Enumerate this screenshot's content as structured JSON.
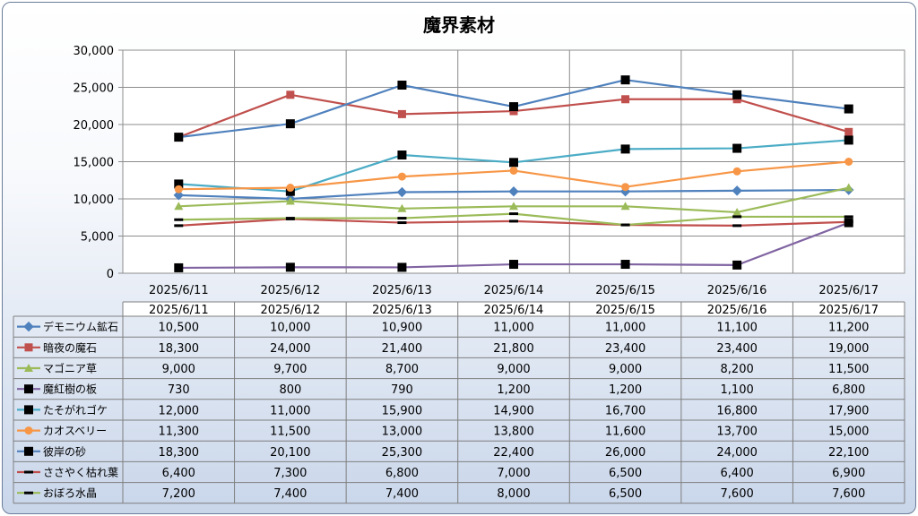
{
  "chart_data": {
    "type": "line",
    "title": "魔界素材",
    "categories": [
      "2025/6/11",
      "2025/6/12",
      "2025/6/13",
      "2025/6/14",
      "2025/6/15",
      "2025/6/16",
      "2025/6/17"
    ],
    "ylim": [
      0,
      30000
    ],
    "yticks": [
      "0",
      "5,000",
      "10,000",
      "15,000",
      "20,000",
      "25,000",
      "30,000"
    ],
    "grid": true,
    "legend": "data-table",
    "series": [
      {
        "name": "デモニウム鉱石",
        "color": "#4f81bd",
        "marker": "diamond",
        "values": [
          10500,
          10000,
          10900,
          11000,
          11000,
          11100,
          11200
        ],
        "labels": [
          "10,500",
          "10,000",
          "10,900",
          "11,000",
          "11,000",
          "11,100",
          "11,200"
        ]
      },
      {
        "name": "暗夜の魔石",
        "color": "#c0504d",
        "marker": "square",
        "values": [
          18300,
          24000,
          21400,
          21800,
          23400,
          23400,
          19000
        ],
        "labels": [
          "18,300",
          "24,000",
          "21,400",
          "21,800",
          "23,400",
          "23,400",
          "19,000"
        ]
      },
      {
        "name": "マゴニア草",
        "color": "#9bbb59",
        "marker": "triangle",
        "values": [
          9000,
          9700,
          8700,
          9000,
          9000,
          8200,
          11500
        ],
        "labels": [
          "9,000",
          "9,700",
          "8,700",
          "9,000",
          "9,000",
          "8,200",
          "11,500"
        ]
      },
      {
        "name": "魔紅樹の板",
        "color": "#8064a2",
        "marker": "blacksquare",
        "values": [
          730,
          800,
          790,
          1200,
          1200,
          1100,
          6800
        ],
        "labels": [
          "730",
          "800",
          "790",
          "1,200",
          "1,200",
          "1,100",
          "6,800"
        ]
      },
      {
        "name": "たそがれゴケ",
        "color": "#4bacc6",
        "marker": "blacksquare",
        "values": [
          12000,
          11000,
          15900,
          14900,
          16700,
          16800,
          17900
        ],
        "labels": [
          "12,000",
          "11,000",
          "15,900",
          "14,900",
          "16,700",
          "16,800",
          "17,900"
        ]
      },
      {
        "name": "カオスベリー",
        "color": "#f79646",
        "marker": "circle",
        "values": [
          11300,
          11500,
          13000,
          13800,
          11600,
          13700,
          15000
        ],
        "labels": [
          "11,300",
          "11,500",
          "13,000",
          "13,800",
          "11,600",
          "13,700",
          "15,000"
        ]
      },
      {
        "name": "彼岸の砂",
        "color": "#4f81bd",
        "marker": "blacksquare",
        "values": [
          18300,
          20100,
          25300,
          22400,
          26000,
          24000,
          22100
        ],
        "labels": [
          "18,300",
          "20,100",
          "25,300",
          "22,400",
          "26,000",
          "24,000",
          "22,100"
        ]
      },
      {
        "name": "ささやく枯れ葉",
        "color": "#c0504d",
        "marker": "dash",
        "values": [
          6400,
          7300,
          6800,
          7000,
          6500,
          6400,
          6900
        ],
        "labels": [
          "6,400",
          "7,300",
          "6,800",
          "7,000",
          "6,500",
          "6,400",
          "6,900"
        ]
      },
      {
        "name": "おぼろ水晶",
        "color": "#9bbb59",
        "marker": "dash",
        "values": [
          7200,
          7400,
          7400,
          8000,
          6500,
          7600,
          7600
        ],
        "labels": [
          "7,200",
          "7,400",
          "7,400",
          "8,000",
          "6,500",
          "7,600",
          "7,600"
        ]
      }
    ]
  }
}
